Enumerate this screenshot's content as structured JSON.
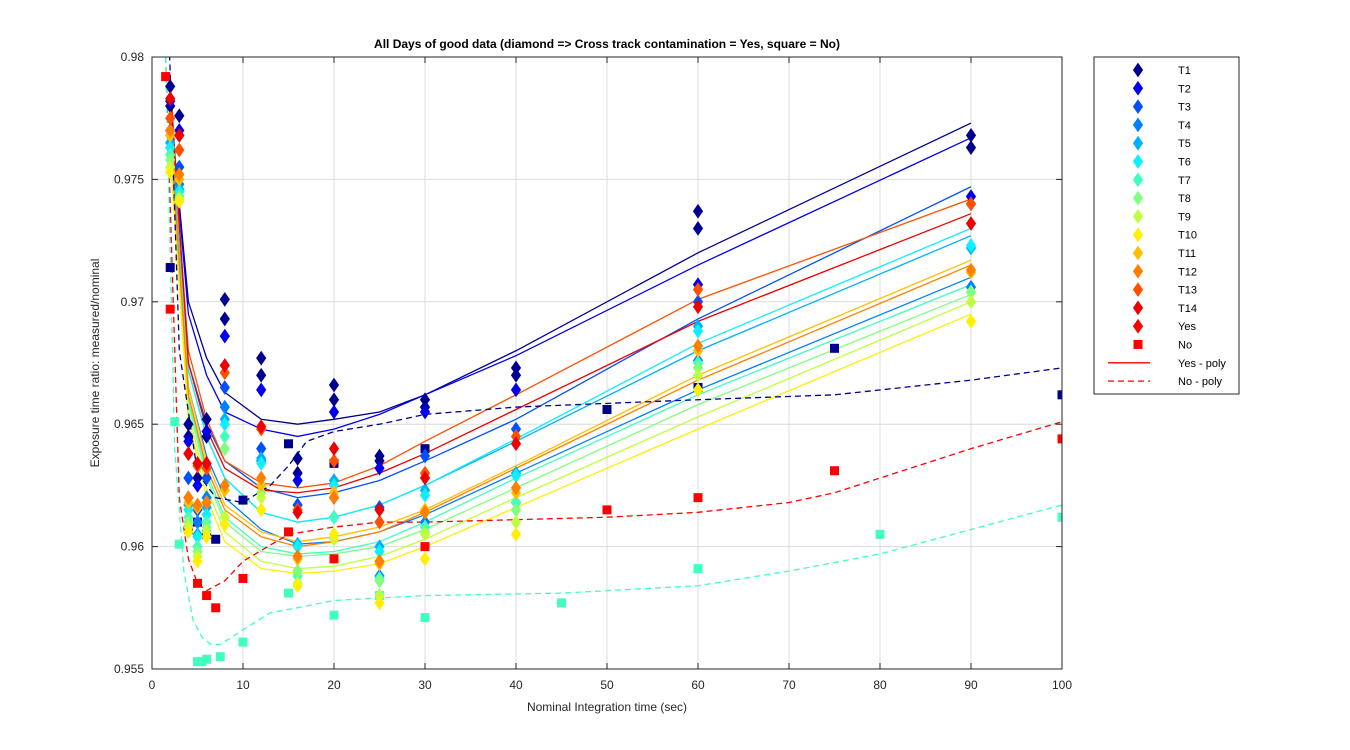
{
  "chart_data": {
    "type": "scatter",
    "title": "All Days of good data  (diamond => Cross track contamination = Yes, square = No)",
    "xlabel": "Nominal Integration time (sec)",
    "ylabel": "Exposure time ratio: measured/nominal",
    "xlim": [
      0,
      100
    ],
    "ylim": [
      0.955,
      0.98
    ],
    "xticks": [
      "0",
      "10",
      "20",
      "30",
      "40",
      "50",
      "60",
      "70",
      "80",
      "90",
      "100"
    ],
    "yticks": [
      "0.955",
      "0.96",
      "0.965",
      "0.97",
      "0.975",
      "0.98"
    ],
    "grid": true,
    "legend_position": "outside-right",
    "legend": [
      "T1",
      "T2",
      "T3",
      "T4",
      "T5",
      "T6",
      "T7",
      "T8",
      "T9",
      "T10",
      "T11",
      "T12",
      "T13",
      "T14",
      "Yes",
      "No",
      "Yes - poly",
      "No - poly"
    ],
    "series_colors": [
      "#00008f",
      "#0000ef",
      "#0050ff",
      "#0080ff",
      "#00b0ff",
      "#10efff",
      "#40ffbf",
      "#80ff80",
      "#bfff40",
      "#ffef00",
      "#ffbf00",
      "#ff8000",
      "#ff5000",
      "#ef0000",
      "#ff0000",
      "#ff0000"
    ],
    "yes_poly_x": [
      2,
      4,
      6,
      8,
      12,
      16,
      20,
      25,
      30,
      40,
      60,
      90
    ],
    "yes_poly_curves": [
      {
        "color": "#00008f",
        "y": [
          0.978,
          0.97,
          0.9677,
          0.9663,
          0.9652,
          0.965,
          0.9652,
          0.9655,
          0.9662,
          0.968,
          0.972,
          0.9773
        ]
      },
      {
        "color": "#0000ef",
        "y": [
          0.978,
          0.9695,
          0.967,
          0.9655,
          0.9648,
          0.9645,
          0.9648,
          0.9654,
          0.9662,
          0.9678,
          0.9715,
          0.9767
        ]
      },
      {
        "color": "#0050ff",
        "y": [
          0.977,
          0.9675,
          0.965,
          0.9635,
          0.9624,
          0.962,
          0.9622,
          0.9627,
          0.9635,
          0.9652,
          0.9693,
          0.9747
        ]
      },
      {
        "color": "#0080ff",
        "y": [
          0.977,
          0.9665,
          0.9637,
          0.962,
          0.9607,
          0.9601,
          0.9602,
          0.9606,
          0.9613,
          0.963,
          0.9664,
          0.971
        ]
      },
      {
        "color": "#00b0ff",
        "y": [
          0.977,
          0.9672,
          0.9645,
          0.9628,
          0.9614,
          0.961,
          0.9612,
          0.9617,
          0.9625,
          0.9643,
          0.968,
          0.9727
        ]
      },
      {
        "color": "#10efff",
        "y": [
          0.977,
          0.9672,
          0.9645,
          0.9628,
          0.9614,
          0.961,
          0.9612,
          0.9617,
          0.9625,
          0.9644,
          0.9683,
          0.973
        ]
      },
      {
        "color": "#40ffbf",
        "y": [
          0.976,
          0.966,
          0.963,
          0.9612,
          0.96,
          0.9597,
          0.9598,
          0.9602,
          0.961,
          0.9628,
          0.9662,
          0.9707
        ]
      },
      {
        "color": "#80ff80",
        "y": [
          0.976,
          0.9658,
          0.9628,
          0.961,
          0.9598,
          0.9596,
          0.9597,
          0.96,
          0.9607,
          0.9624,
          0.9658,
          0.9703
        ]
      },
      {
        "color": "#bfff40",
        "y": [
          0.976,
          0.9655,
          0.9624,
          0.9606,
          0.9594,
          0.9591,
          0.9592,
          0.9596,
          0.9603,
          0.962,
          0.9653,
          0.97
        ]
      },
      {
        "color": "#ffef00",
        "y": [
          0.976,
          0.9652,
          0.962,
          0.9602,
          0.9591,
          0.9589,
          0.959,
          0.9593,
          0.96,
          0.9616,
          0.9648,
          0.9695
        ]
      },
      {
        "color": "#ffbf00",
        "y": [
          0.977,
          0.9665,
          0.9635,
          0.9617,
          0.9606,
          0.9602,
          0.9604,
          0.9608,
          0.9615,
          0.9633,
          0.967,
          0.9717
        ]
      },
      {
        "color": "#ff8000",
        "y": [
          0.977,
          0.9662,
          0.9632,
          0.9615,
          0.9604,
          0.96,
          0.9602,
          0.9606,
          0.9614,
          0.9632,
          0.9668,
          0.9715
        ]
      },
      {
        "color": "#ff5000",
        "y": [
          0.978,
          0.968,
          0.9652,
          0.9635,
          0.9626,
          0.9624,
          0.9626,
          0.9633,
          0.9643,
          0.9662,
          0.9701,
          0.9742
        ]
      },
      {
        "color": "#ef0000",
        "y": [
          0.979,
          0.9675,
          0.9648,
          0.9632,
          0.9623,
          0.9622,
          0.9624,
          0.963,
          0.9638,
          0.9656,
          0.9692,
          0.9736
        ]
      }
    ],
    "no_poly_curves": [
      {
        "color": "#00008f",
        "x": [
          1.5,
          3,
          5,
          7,
          10,
          13,
          15,
          17,
          20,
          25,
          30,
          40,
          60,
          75,
          90,
          100
        ],
        "y": [
          0.985,
          0.968,
          0.963,
          0.962,
          0.9618,
          0.9625,
          0.9633,
          0.9643,
          0.9647,
          0.965,
          0.9654,
          0.9657,
          0.966,
          0.9662,
          0.9668,
          0.9673
        ]
      },
      {
        "color": "#ff0000",
        "x": [
          1.5,
          3,
          4,
          5,
          6,
          8,
          10,
          15,
          20,
          25,
          30,
          40,
          50,
          60,
          70,
          75,
          80,
          90,
          100
        ],
        "y": [
          0.98,
          0.962,
          0.9595,
          0.9585,
          0.9582,
          0.9586,
          0.9594,
          0.9605,
          0.9608,
          0.961,
          0.961,
          0.9611,
          0.9612,
          0.9614,
          0.9618,
          0.9622,
          0.9628,
          0.964,
          0.9651
        ]
      },
      {
        "color": "#40ffbf",
        "x": [
          1.5,
          2.5,
          3.5,
          4.5,
          5.5,
          6.5,
          7.5,
          10,
          13,
          16,
          20,
          30,
          45,
          60,
          70,
          80,
          90,
          100
        ],
        "y": [
          0.98,
          0.964,
          0.959,
          0.957,
          0.9563,
          0.956,
          0.956,
          0.9566,
          0.9573,
          0.9575,
          0.9578,
          0.958,
          0.9581,
          0.9584,
          0.959,
          0.9597,
          0.9607,
          0.9617
        ]
      }
    ],
    "diamonds": [
      {
        "color": "#00008f",
        "x": [
          2,
          2,
          3,
          3,
          4,
          4,
          5,
          5,
          6,
          6,
          8,
          8,
          12,
          12,
          16,
          16,
          20,
          20,
          25,
          25,
          30,
          30,
          40,
          40,
          60,
          60,
          90,
          90
        ],
        "y": [
          0.9788,
          0.978,
          0.9776,
          0.9768,
          0.965,
          0.9645,
          0.9628,
          0.9616,
          0.9652,
          0.9645,
          0.9701,
          0.9693,
          0.9677,
          0.967,
          0.9636,
          0.963,
          0.9666,
          0.966,
          0.9637,
          0.9635,
          0.966,
          0.9657,
          0.9673,
          0.967,
          0.9737,
          0.973,
          0.9768,
          0.9763
        ]
      },
      {
        "color": "#0000ef",
        "x": [
          2,
          3,
          4,
          5,
          6,
          8,
          12,
          16,
          20,
          25,
          30,
          40,
          60,
          90
        ],
        "y": [
          0.9782,
          0.977,
          0.9643,
          0.9625,
          0.9647,
          0.9686,
          0.9664,
          0.9627,
          0.9655,
          0.9632,
          0.9655,
          0.9664,
          0.9707,
          0.9743
        ]
      },
      {
        "color": "#0050ff",
        "x": [
          2,
          3,
          4,
          5,
          6,
          8,
          12,
          16,
          20,
          25,
          30,
          40,
          60,
          90
        ],
        "y": [
          0.977,
          0.9755,
          0.9628,
          0.9615,
          0.9628,
          0.9665,
          0.964,
          0.9617,
          0.962,
          0.9616,
          0.9637,
          0.9648,
          0.97,
          0.974
        ]
      },
      {
        "color": "#0080ff",
        "x": [
          2,
          3,
          4,
          5,
          6,
          8,
          12,
          16,
          20,
          25,
          30,
          40,
          60,
          90
        ],
        "y": [
          0.9768,
          0.9748,
          0.962,
          0.961,
          0.962,
          0.9657,
          0.9635,
          0.959,
          0.9612,
          0.9588,
          0.961,
          0.9618,
          0.9676,
          0.9706
        ]
      },
      {
        "color": "#00b0ff",
        "x": [
          2,
          3,
          4,
          5,
          6,
          8,
          12,
          16,
          20,
          25,
          30,
          40,
          60,
          90
        ],
        "y": [
          0.9765,
          0.9746,
          0.9617,
          0.9605,
          0.9616,
          0.9652,
          0.9636,
          0.9601,
          0.9627,
          0.96,
          0.9623,
          0.963,
          0.969,
          0.9722
        ]
      },
      {
        "color": "#10efff",
        "x": [
          2,
          3,
          4,
          5,
          6,
          8,
          12,
          16,
          20,
          25,
          30,
          40,
          60,
          90
        ],
        "y": [
          0.9763,
          0.9745,
          0.9615,
          0.9604,
          0.9613,
          0.965,
          0.9634,
          0.96,
          0.9625,
          0.9598,
          0.9621,
          0.9629,
          0.9688,
          0.9723
        ]
      },
      {
        "color": "#40ffbf",
        "x": [
          2,
          3,
          4,
          5,
          6,
          8,
          12,
          16,
          20,
          25,
          30,
          40,
          60,
          90
        ],
        "y": [
          0.976,
          0.9743,
          0.9612,
          0.96,
          0.961,
          0.9645,
          0.9625,
          0.9588,
          0.9612,
          0.9587,
          0.9608,
          0.9618,
          0.9675,
          0.9704
        ]
      },
      {
        "color": "#80ff80",
        "x": [
          2,
          3,
          4,
          5,
          6,
          8,
          12,
          16,
          20,
          25,
          30,
          40,
          60,
          90
        ],
        "y": [
          0.9758,
          0.9742,
          0.961,
          0.9598,
          0.9608,
          0.964,
          0.9622,
          0.959,
          0.9605,
          0.9586,
          0.9606,
          0.9615,
          0.9673,
          0.9704
        ]
      },
      {
        "color": "#bfff40",
        "x": [
          2,
          3,
          4,
          5,
          6,
          8,
          12,
          16,
          20,
          25,
          30,
          40,
          60,
          90
        ],
        "y": [
          0.9755,
          0.9742,
          0.9608,
          0.9596,
          0.9606,
          0.9612,
          0.962,
          0.9585,
          0.9603,
          0.958,
          0.9605,
          0.961,
          0.967,
          0.97
        ]
      },
      {
        "color": "#ffef00",
        "x": [
          2,
          3,
          4,
          5,
          6,
          8,
          12,
          16,
          20,
          25,
          30,
          40,
          60,
          90
        ],
        "y": [
          0.9753,
          0.9741,
          0.9606,
          0.9594,
          0.9604,
          0.9609,
          0.9615,
          0.9584,
          0.9605,
          0.9577,
          0.9595,
          0.9605,
          0.9664,
          0.9692
        ]
      },
      {
        "color": "#ffbf00",
        "x": [
          2,
          3,
          4,
          5,
          6,
          8,
          12,
          16,
          20,
          25,
          30,
          40,
          60,
          90
        ],
        "y": [
          0.9768,
          0.975,
          0.9618,
          0.9616,
          0.9618,
          0.9623,
          0.9625,
          0.9595,
          0.9622,
          0.9593,
          0.9615,
          0.9622,
          0.968,
          0.9712
        ]
      },
      {
        "color": "#ff8000",
        "x": [
          2,
          3,
          4,
          5,
          6,
          8,
          12,
          16,
          20,
          25,
          30,
          40,
          60,
          90
        ],
        "y": [
          0.977,
          0.9752,
          0.962,
          0.9617,
          0.9618,
          0.9625,
          0.9628,
          0.9596,
          0.962,
          0.9594,
          0.9614,
          0.9624,
          0.9682,
          0.9713
        ]
      },
      {
        "color": "#ff5000",
        "x": [
          2,
          3,
          4,
          5,
          6,
          8,
          12,
          16,
          20,
          25,
          30,
          40,
          60,
          90
        ],
        "y": [
          0.9775,
          0.9762,
          0.9638,
          0.9633,
          0.9632,
          0.9671,
          0.9648,
          0.9615,
          0.9635,
          0.961,
          0.963,
          0.9645,
          0.9705,
          0.974
        ]
      },
      {
        "color": "#ef0000",
        "x": [
          2,
          3,
          4,
          5,
          6,
          8,
          12,
          16,
          20,
          25,
          30,
          40,
          60,
          90
        ],
        "y": [
          0.9783,
          0.9768,
          0.9638,
          0.9634,
          0.9634,
          0.9674,
          0.9649,
          0.9614,
          0.964,
          0.9615,
          0.9628,
          0.9642,
          0.9698,
          0.9732
        ]
      }
    ],
    "squares": [
      {
        "color": "#00008f",
        "x": [
          2,
          5,
          6,
          7,
          10,
          15,
          20,
          30,
          50,
          60,
          75,
          100
        ],
        "y": [
          0.9714,
          0.961,
          0.9605,
          0.9603,
          0.9619,
          0.9642,
          0.9634,
          0.964,
          0.9656,
          0.9665,
          0.9681,
          0.9662
        ]
      },
      {
        "color": "#ff0000",
        "x": [
          1.5,
          2,
          4,
          5,
          6,
          7,
          10,
          15,
          20,
          30,
          50,
          60,
          75,
          100
        ],
        "y": [
          0.9792,
          0.9697,
          0.9607,
          0.9585,
          0.958,
          0.9575,
          0.9587,
          0.9606,
          0.9595,
          0.96,
          0.9615,
          0.962,
          0.9631,
          0.9644
        ]
      },
      {
        "color": "#40ffbf",
        "x": [
          2.5,
          3,
          5,
          5.5,
          6,
          7.5,
          10,
          15,
          20,
          25,
          30,
          45,
          60,
          80,
          100
        ],
        "y": [
          0.9651,
          0.9601,
          0.9553,
          0.9553,
          0.9554,
          0.9555,
          0.9561,
          0.9581,
          0.9572,
          0.958,
          0.9571,
          0.9577,
          0.9591,
          0.9605,
          0.9612
        ]
      }
    ]
  }
}
